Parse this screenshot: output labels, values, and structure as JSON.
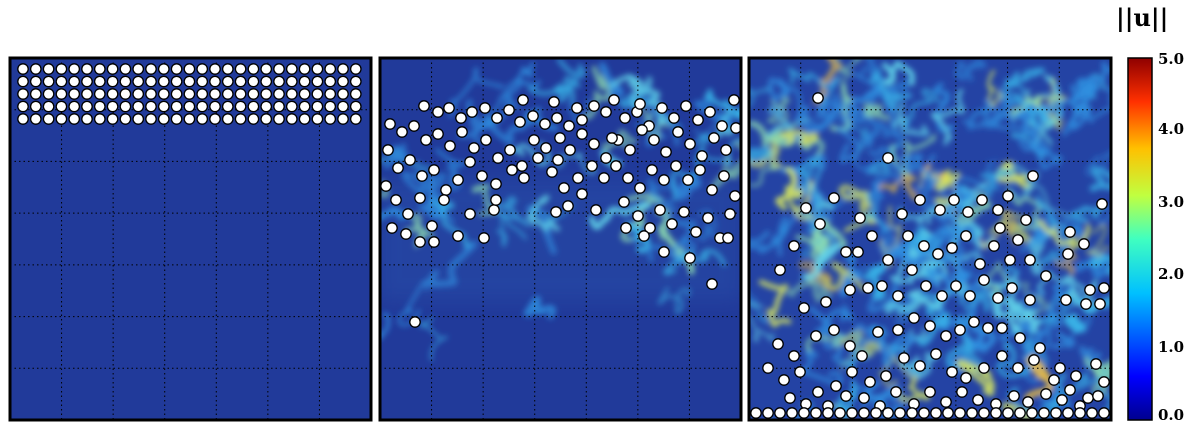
{
  "figure": {
    "panels": [
      {
        "id": "panel-1",
        "state": "initial-lattice"
      },
      {
        "id": "panel-2",
        "state": "early-sedimentation"
      },
      {
        "id": "panel-3",
        "state": "late-sedimentation"
      }
    ],
    "colorbar": {
      "title": "||u||",
      "colormap": "jet",
      "ticks": [
        "0.0",
        "1.0",
        "2.0",
        "3.0",
        "4.0",
        "5.0"
      ],
      "range": [
        0.0,
        5.0
      ]
    },
    "colors": {
      "background_field": "#213a9a",
      "particle_fill": "#ffffff",
      "particle_stroke": "#000000",
      "grid_dots": "#000000",
      "frame": "#000000"
    }
  }
}
